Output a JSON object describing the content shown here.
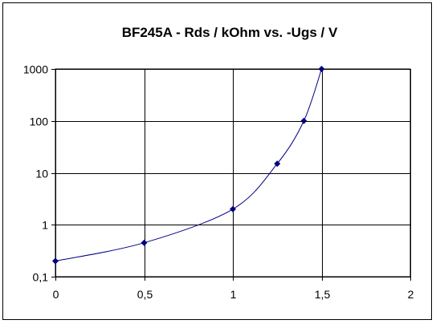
{
  "chart_data": {
    "type": "line",
    "title": "BF245A - Rds / kOhm vs. -Ugs / V",
    "xlabel": "",
    "ylabel": "",
    "xlim": [
      0,
      2
    ],
    "ylim": [
      0.1,
      1000
    ],
    "yscale": "log",
    "grid": true,
    "legend": "none",
    "x_ticks": [
      "0",
      "0,5",
      "1",
      "1,5",
      "2"
    ],
    "y_ticks": [
      "0,1",
      "1",
      "10",
      "100",
      "1000"
    ],
    "series": [
      {
        "x": [
          0,
          0.5,
          1,
          1.25,
          1.4,
          1.5
        ],
        "y": [
          0.2,
          0.45,
          2,
          15,
          100,
          1000
        ],
        "color": "#000080"
      }
    ]
  }
}
